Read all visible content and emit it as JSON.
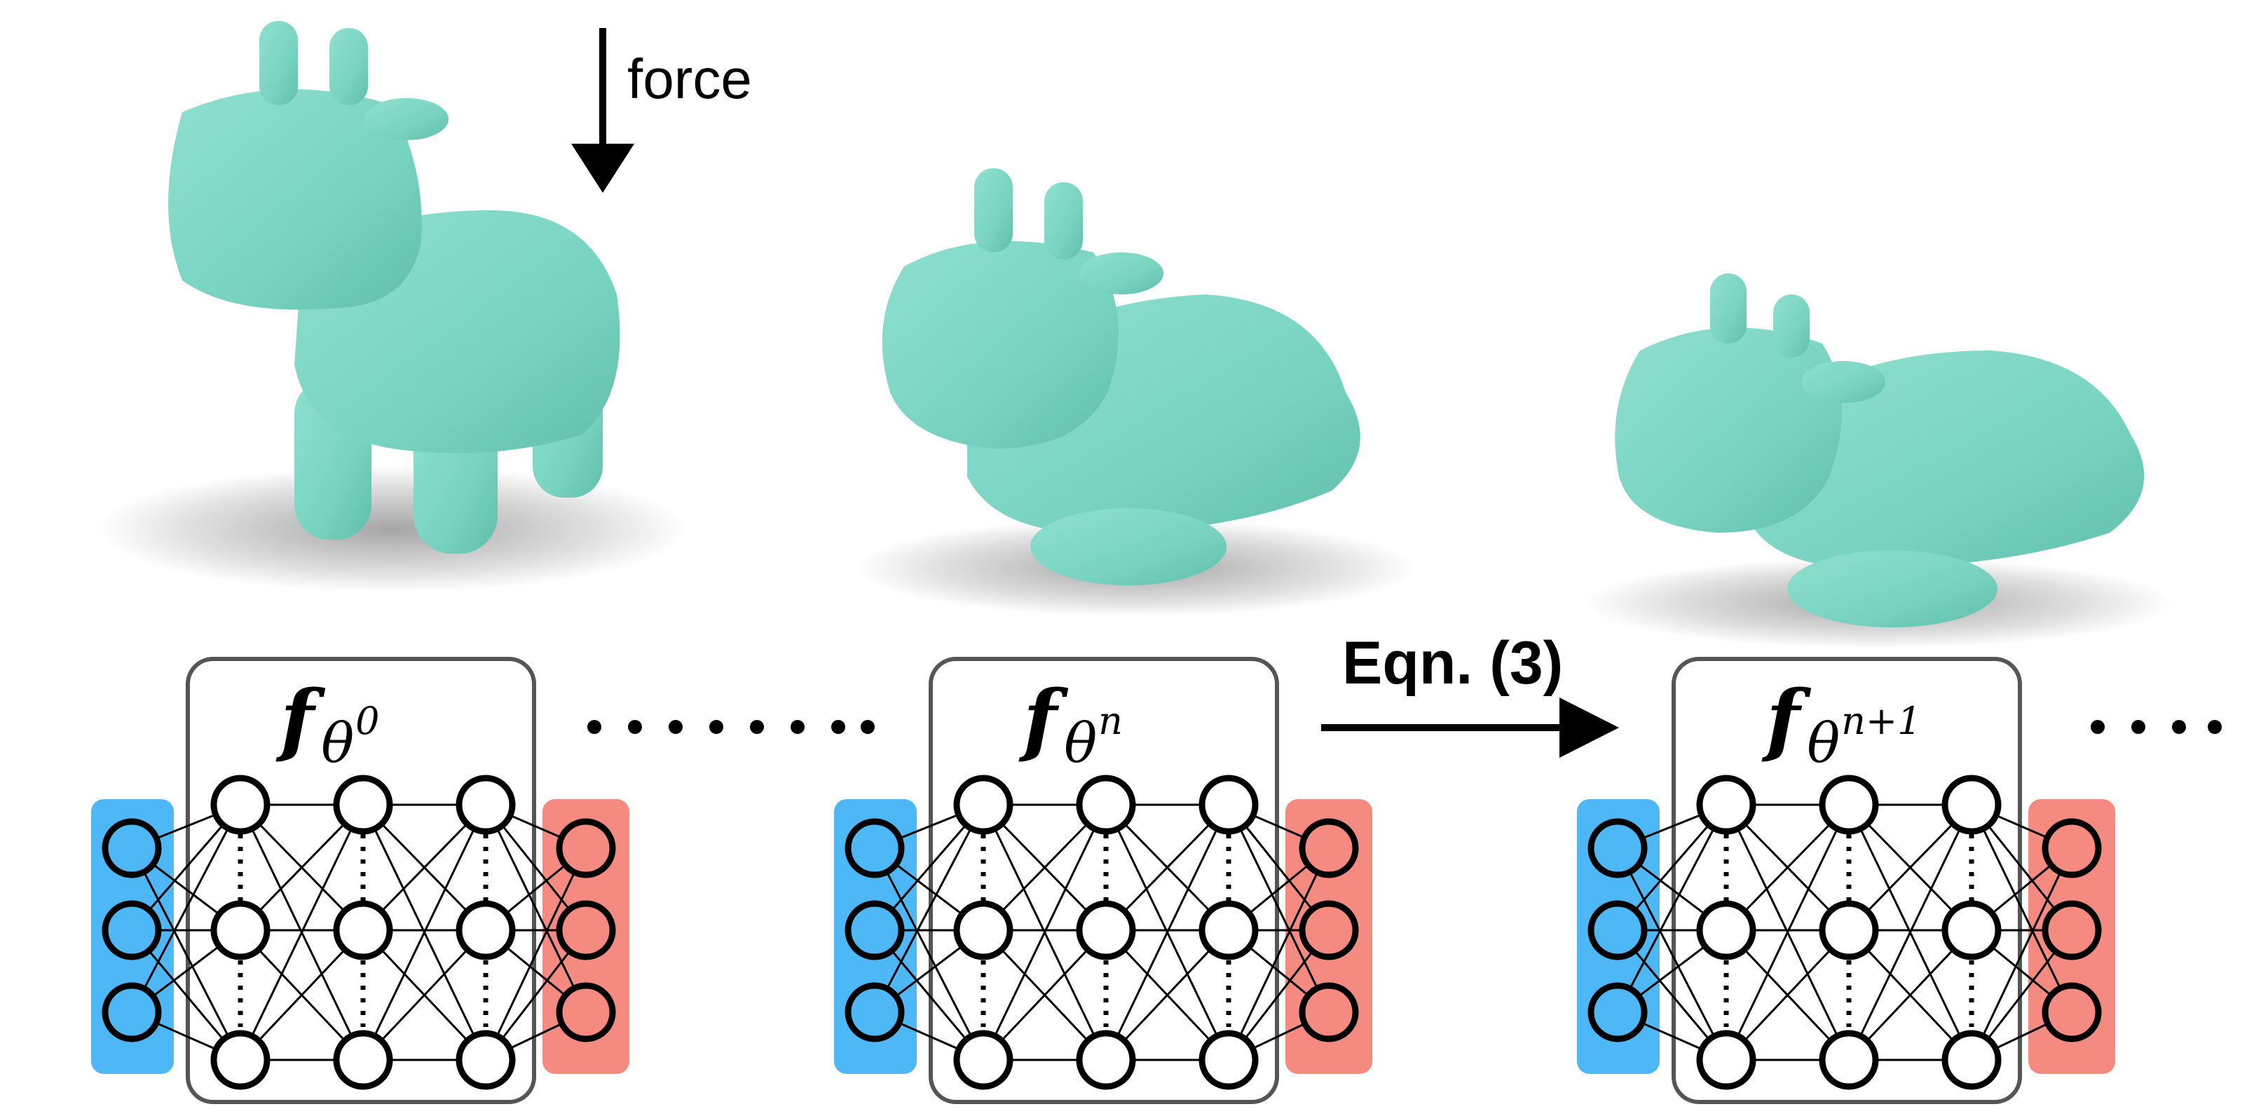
{
  "force": {
    "label": "force"
  },
  "update": {
    "label": "Eqn. (3)"
  },
  "networks": [
    {
      "symbol": "f",
      "subscript": "θ",
      "superscript": "0"
    },
    {
      "symbol": "f",
      "subscript": "θ",
      "superscript": "n"
    },
    {
      "symbol": "f",
      "subscript": "θ",
      "superscript": "n+1"
    }
  ],
  "colors": {
    "cow": "#7ed6c4",
    "cow_shade": "#5cbfab",
    "input_layer": "#4db8f5",
    "output_layer": "#f58a80",
    "box_stroke": "#555555"
  },
  "icons": {
    "force": "down-arrow-icon",
    "update": "right-arrow-icon",
    "continuation": "ellipsis-dots"
  }
}
